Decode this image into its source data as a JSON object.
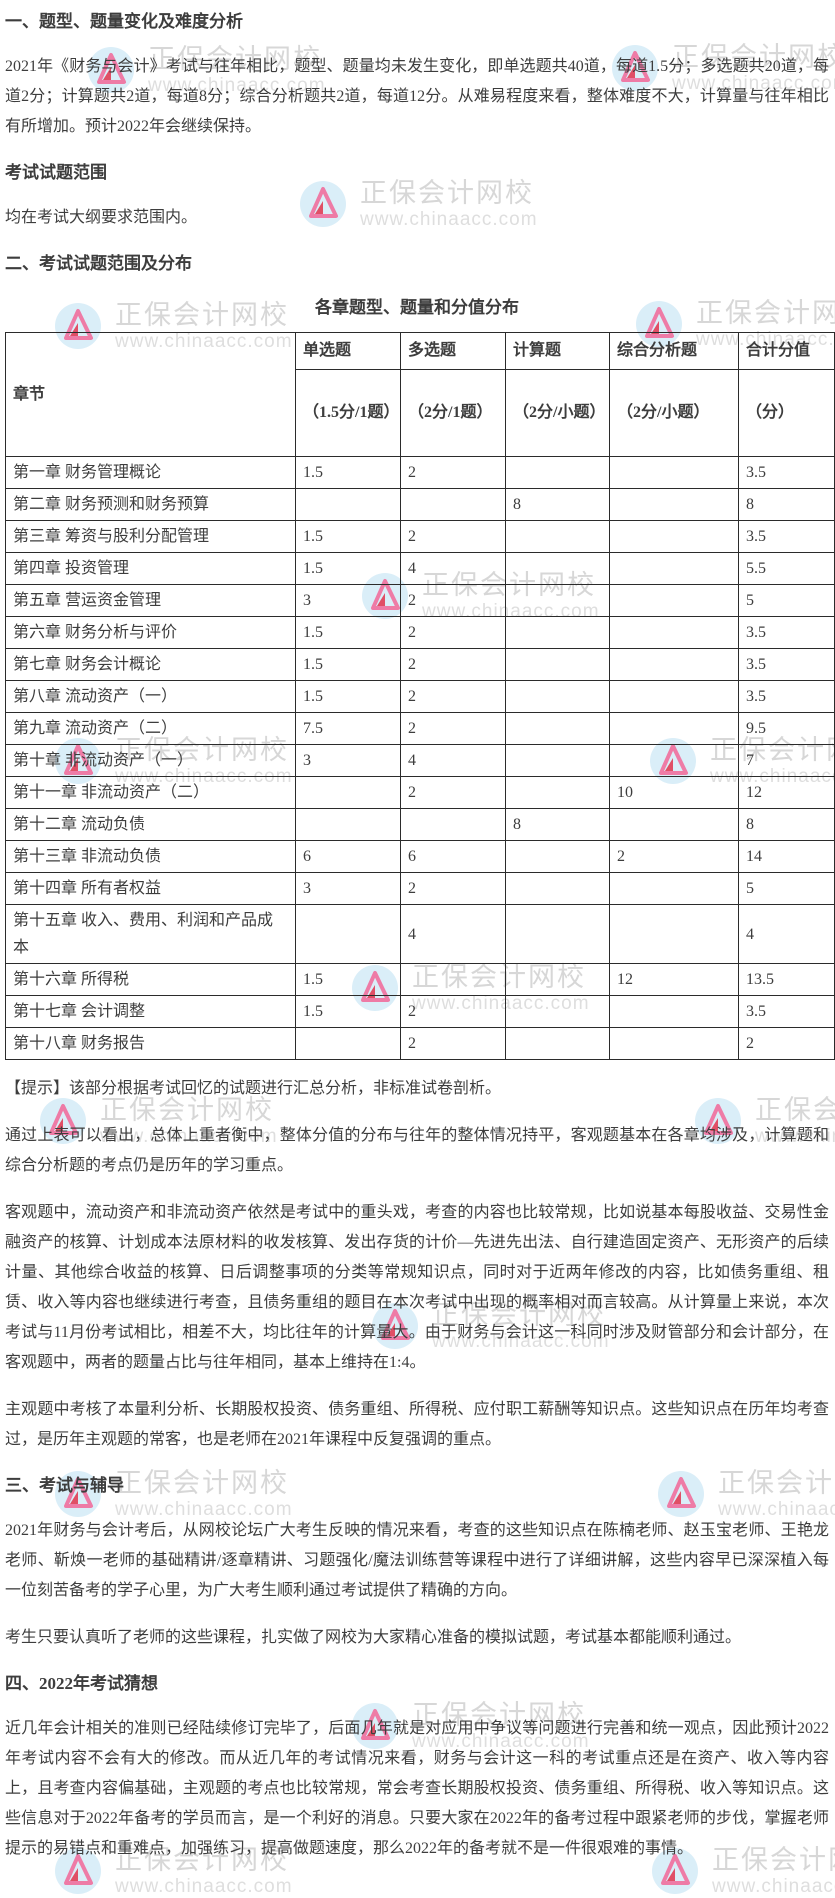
{
  "watermark": {
    "brand": "正保会计网校",
    "url": "www.chinaacc.com",
    "logo_circle_color": "#daeef8",
    "logo_mark_color": "#ee7ba6",
    "logo_mark_accent": "#e04f66"
  },
  "doc": {
    "h1": "一、题型、题量变化及难度分析",
    "p1": "2021年《财务与会计》考试与往年相比，题型、题量均未发生变化，即单选题共40道，每道1.5分；多选题共20道，每道2分；计算题共2道，每道8分；综合分析题共2道，每道12分。从难易程度来看，整体难度不大，计算量与往年相比有所增加。预计2022年会继续保持。",
    "h2": "考试试题范围",
    "p2": "均在考试大纲要求范围内。",
    "h3": "二、考试试题范围及分布",
    "table_title": "各章题型、题量和分值分布",
    "tip": "【提示】该部分根据考试回忆的试题进行汇总分析，非标准试卷剖析。",
    "p3": "通过上表可以看出，总体上重者衡中，整体分值的分布与往年的整体情况持平，客观题基本在各章均涉及，计算题和综合分析题的考点仍是历年的学习重点。",
    "p4": "客观题中，流动资产和非流动资产依然是考试中的重头戏，考查的内容也比较常规，比如说基本每股收益、交易性金融资产的核算、计划成本法原材料的收发核算、发出存货的计价—先进先出法、自行建造固定资产、无形资产的后续计量、其他综合收益的核算、日后调整事项的分类等常规知识点，同时对于近两年修改的内容，比如债务重组、租赁、收入等内容也继续进行考查，且债务重组的题目在本次考试中出现的概率相对而言较高。从计算量上来说，本次考试与11月份考试相比，相差不大，均比往年的计算量大。由于财务与会计这一科同时涉及财管部分和会计部分，在客观题中，两者的题量占比与往年相同，基本上维持在1:4。",
    "p5": "主观题中考核了本量利分析、长期股权投资、债务重组、所得税、应付职工薪酬等知识点。这些知识点在历年均考查过，是历年主观题的常客，也是老师在2021年课程中反复强调的重点。",
    "h4": "三、考试与辅导",
    "p6": "2021年财务与会计考后，从网校论坛广大考生反映的情况来看，考查的这些知识点在陈楠老师、赵玉宝老师、王艳龙老师、靳焕一老师的基础精讲/逐章精讲、习题强化/魔法训练营等课程中进行了详细讲解，这些内容早已深深植入每一位刻苦备考的学子心里，为广大考生顺利通过考试提供了精确的方向。",
    "p7": "考生只要认真听了老师的这些课程，扎实做了网校为大家精心准备的模拟试题，考试基本都能顺利通过。",
    "h5": "四、2022年考试猜想",
    "p8": "近几年会计相关的准则已经陆续修订完毕了，后面几年就是对应用中争议等问题进行完善和统一观点，因此预计2022年考试内容不会有大的修改。而从近几年的考试情况来看，财务与会计这一科的考试重点还是在资产、收入等内容上，且考查内容偏基础，主观题的考点也比较常规，常会考查长期股权投资、债务重组、所得税、收入等知识点。这些信息对于2022年备考的学员而言，是一个利好的消息。只要大家在2022年的备考过程中跟紧老师的步伐，掌握老师提示的易错点和重难点，加强练习，提高做题速度，那么2022年的备考就不是一件很艰难的事情。"
  },
  "table": {
    "type": "table",
    "col_headers": [
      "章节",
      "单选题",
      "多选题",
      "计算题",
      "综合分析题",
      "合计分值"
    ],
    "sub_headers": [
      "（1.5分/1题）",
      "（2分/1题）",
      "（2分/小题）",
      "（2分/小题）",
      "（分）"
    ],
    "rows": [
      [
        "第一章 财务管理概论",
        "1.5",
        "2",
        "",
        "",
        "3.5"
      ],
      [
        "第二章 财务预测和财务预算",
        "",
        "",
        "8",
        "",
        "8"
      ],
      [
        "第三章 筹资与股利分配管理",
        "1.5",
        "2",
        "",
        "",
        "3.5"
      ],
      [
        "第四章 投资管理",
        "1.5",
        "4",
        "",
        "",
        "5.5"
      ],
      [
        "第五章 营运资金管理",
        "3",
        "2",
        "",
        "",
        "5"
      ],
      [
        "第六章 财务分析与评价",
        "1.5",
        "2",
        "",
        "",
        "3.5"
      ],
      [
        "第七章 财务会计概论",
        "1.5",
        "2",
        "",
        "",
        "3.5"
      ],
      [
        "第八章 流动资产（一）",
        "1.5",
        "2",
        "",
        "",
        "3.5"
      ],
      [
        "第九章 流动资产（二）",
        "7.5",
        "2",
        "",
        "",
        "9.5"
      ],
      [
        "第十章 非流动资产（一）",
        "3",
        "4",
        "",
        "",
        "7"
      ],
      [
        "第十一章 非流动资产（二）",
        "",
        "2",
        "",
        "10",
        "12"
      ],
      [
        "第十二章 流动负债",
        "",
        "",
        "8",
        "",
        "8"
      ],
      [
        "第十三章 非流动负债",
        "6",
        "6",
        "",
        "2",
        "14"
      ],
      [
        "第十四章 所有者权益",
        "3",
        "2",
        "",
        "",
        "5"
      ],
      [
        "第十五章 收入、费用、利润和产品成本",
        "",
        "4",
        "",
        "",
        "4"
      ],
      [
        "第十六章 所得税",
        "1.5",
        "",
        "",
        "12",
        "13.5"
      ],
      [
        "第十七章 会计调整",
        "1.5",
        "2",
        "",
        "",
        "3.5"
      ],
      [
        "第十八章 财务报告",
        "",
        "2",
        "",
        "",
        "2"
      ]
    ]
  }
}
